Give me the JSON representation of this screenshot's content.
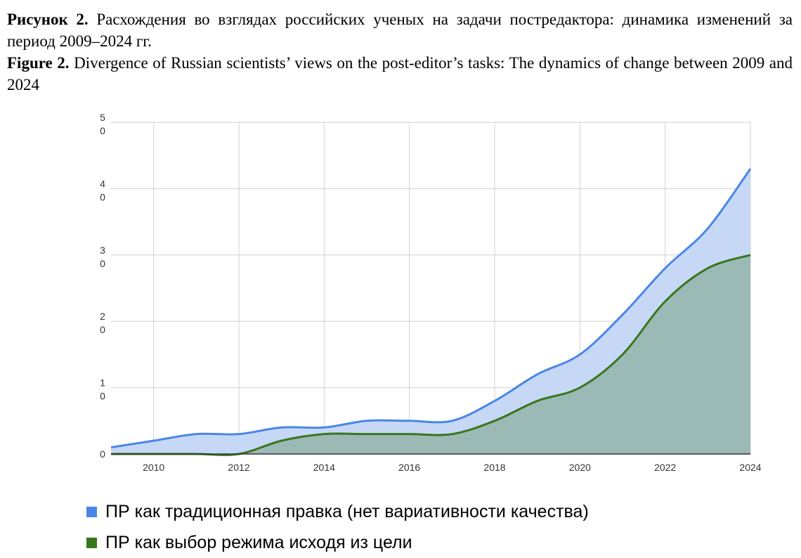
{
  "caption": {
    "ru_label": "Рисунок 2.",
    "ru_text": "Расхождения во взглядах российских ученых на задачи постредактора: динамика изменений за период 2009–2024 гг.",
    "en_label": "Figure 2.",
    "en_text": "Divergence of Russian scientists’ views on the post-editor’s tasks: The dynamics of change between 2009 and 2024"
  },
  "chart_data": {
    "type": "area",
    "x": [
      2009,
      2010,
      2011,
      2012,
      2013,
      2014,
      2015,
      2016,
      2017,
      2018,
      2019,
      2020,
      2021,
      2022,
      2023,
      2024
    ],
    "xlim": [
      2009,
      2024
    ],
    "ylim": [
      0,
      50
    ],
    "x_ticks": [
      "2010",
      "2012",
      "2014",
      "2016",
      "2018",
      "2020",
      "2022",
      "2024"
    ],
    "y_ticks": [
      {
        "value": 0,
        "label": "0"
      },
      {
        "value": 10,
        "label": "1\n0"
      },
      {
        "value": 20,
        "label": "2\n0"
      },
      {
        "value": 30,
        "label": "3\n0"
      },
      {
        "value": 40,
        "label": "4\n0"
      },
      {
        "value": 50,
        "label": "5\n0"
      }
    ],
    "grid": true,
    "legend_position": "bottom",
    "series": [
      {
        "name": "ПР как традиционная правка (нет вариативности качества)",
        "color": "#4a86e8",
        "fill": "#c6d8f5",
        "values": [
          1,
          2,
          3,
          3,
          4,
          4,
          5,
          5,
          5,
          8,
          12,
          15,
          21,
          28,
          34,
          43
        ]
      },
      {
        "name": "ПР как выбор режима исходя из цели",
        "color": "#38761d",
        "fill": "#9bbab6",
        "values": [
          0,
          0,
          0,
          0,
          2,
          3,
          3,
          3,
          3,
          5,
          8,
          10,
          15,
          23,
          28,
          30
        ]
      }
    ]
  }
}
